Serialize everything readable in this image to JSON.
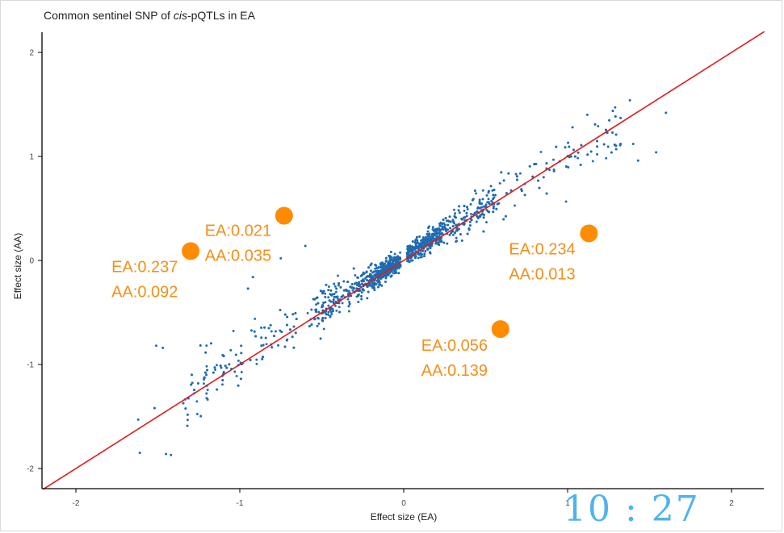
{
  "chart_data": {
    "type": "scatter",
    "title_prefix": "Common sentinel SNP of ",
    "title_italic": "cis",
    "title_suffix": "-pQTLs in EA",
    "xlabel": "Effect size (EA)",
    "ylabel": "Effect size (AA)",
    "xlim": [
      -2.2,
      2.2
    ],
    "ylim": [
      -2.2,
      2.2
    ],
    "xticks": [
      -2,
      -1,
      0,
      1,
      2
    ],
    "yticks": [
      -2,
      -1,
      0,
      1,
      2
    ],
    "xtick_labels": [
      "-2",
      "-1",
      "0",
      "1",
      "2"
    ],
    "ytick_labels": [
      "-2",
      "-1",
      "0",
      "1",
      "2"
    ],
    "point_color": "#1f6bb0",
    "reference_line": {
      "label": "y = x",
      "color": "#e31a1c",
      "from": [
        -2.2,
        -2.2
      ],
      "to": [
        2.2,
        2.2
      ]
    },
    "main_cloud": {
      "approx_points": 2000,
      "x_range": [
        -1.6,
        1.6
      ],
      "near_identity": true
    },
    "outlier_points": [
      {
        "x": -1.61,
        "y": -1.85
      },
      {
        "x": -1.45,
        "y": -1.86
      },
      {
        "x": -1.42,
        "y": -1.87
      },
      {
        "x": -1.62,
        "y": -1.53
      },
      {
        "x": -1.52,
        "y": -1.42
      },
      {
        "x": -1.32,
        "y": -1.59
      },
      {
        "x": -1.51,
        "y": -0.82
      },
      {
        "x": -1.47,
        "y": -0.84
      },
      {
        "x": -0.92,
        "y": -0.16
      },
      {
        "x": -0.95,
        "y": -0.27
      },
      {
        "x": -0.75,
        "y": 0.02
      },
      {
        "x": -0.6,
        "y": 0.14
      },
      {
        "x": 1.12,
        "y": 1.4
      },
      {
        "x": 1.38,
        "y": 1.54
      },
      {
        "x": 1.54,
        "y": 1.04
      },
      {
        "x": 1.6,
        "y": 1.42
      },
      {
        "x": 1.4,
        "y": 1.12
      },
      {
        "x": 1.18,
        "y": 1.02
      },
      {
        "x": 1.43,
        "y": 0.96
      },
      {
        "x": 1.03,
        "y": 1.28
      }
    ],
    "highlighted_points": [
      {
        "x": -1.3,
        "y": 0.09,
        "label_ea": "EA:0.237",
        "label_aa": "AA:0.092"
      },
      {
        "x": -0.73,
        "y": 0.43,
        "label_ea": "EA:0.021",
        "label_aa": "AA:0.035"
      },
      {
        "x": 1.13,
        "y": 0.26,
        "label_ea": "EA:0.234",
        "label_aa": "AA:0.013"
      },
      {
        "x": 0.59,
        "y": -0.66,
        "label_ea": "EA:0.056",
        "label_aa": "AA:0.139"
      }
    ],
    "highlight_color": "#ff8c00",
    "highlight_text_color": "#f39019"
  },
  "overlay": {
    "clock_text": "10 : 27",
    "clock_color": "#4fb3ee"
  }
}
